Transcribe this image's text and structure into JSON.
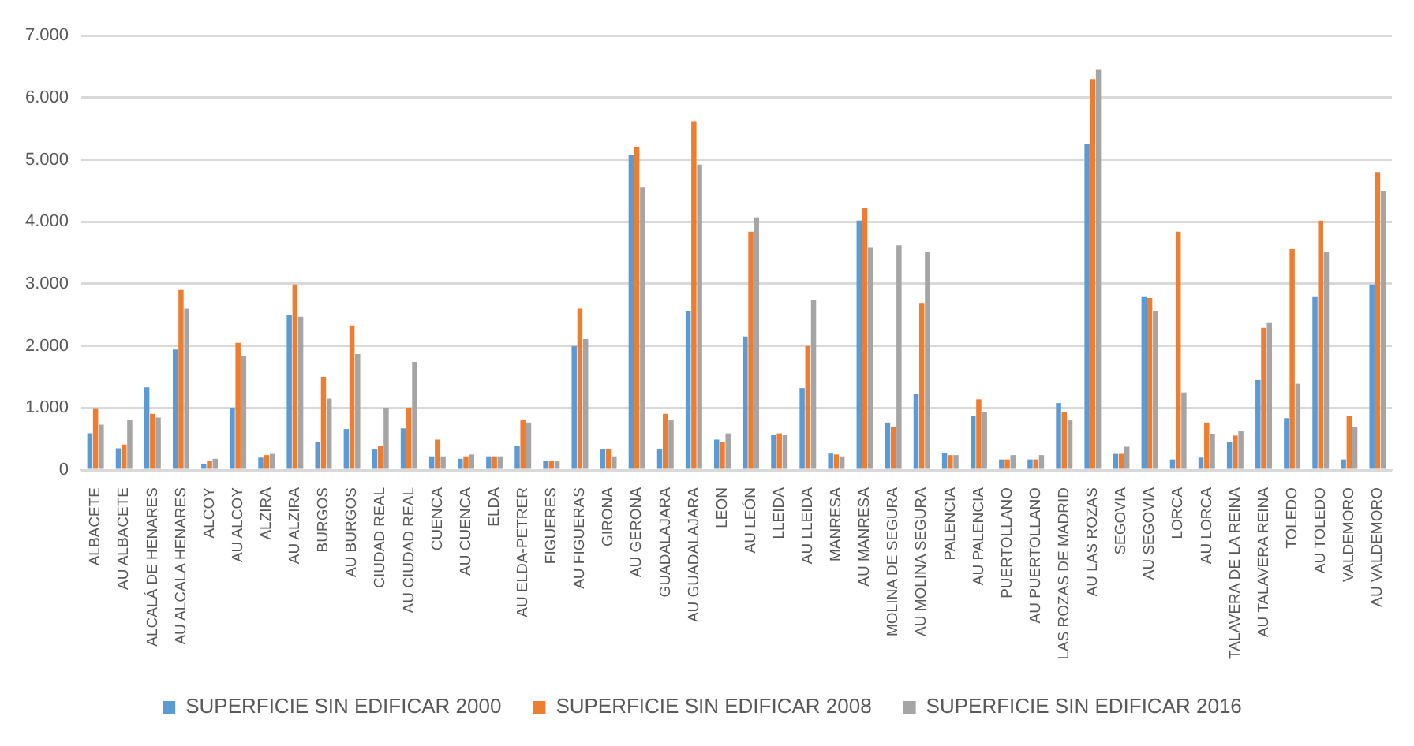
{
  "chart_data": {
    "type": "bar",
    "categories": [
      "ALBACETE",
      "AU ALBACETE",
      "ALCALÁ DE HENARES",
      "AU ALCALA HENARES",
      "ALCOY",
      "AU ALCOY",
      "ALZIRA",
      "AU ALZIRA",
      "BURGOS",
      "AU BURGOS",
      "CIUDAD REAL",
      "AU CIUDAD REAL",
      "CUENCA",
      "AU CUENCA",
      "ELDA",
      "AU ELDA-PETRER",
      "FIGUERES",
      "AU FIGUERAS",
      "GIRONA",
      "AU GERONA",
      "GUADALAJARA",
      "AU GUADALAJARA",
      "LEON",
      "AU LEÓN",
      "LLEIDA",
      "AU LLEIDA",
      "MANRESA",
      "AU MANRESA",
      "MOLINA DE SEGURA",
      "AU MOLINA SEGURA",
      "PALENCIA",
      "AU PALENCIA",
      "PUERTOLLANO",
      "AU PUERTOLLANO",
      "LAS ROZAS DE MADRID",
      "AU LAS ROZAS",
      "SEGOVIA",
      "AU SEGOVIA",
      "LORCA",
      "AU LORCA",
      "TALAVERA DE LA REINA",
      "AU TALAVERA REINA",
      "TOLEDO",
      "AU TOLEDO",
      "VALDEMORO",
      "AU VALDEMORO"
    ],
    "series": [
      {
        "name": "SUPERFICIE SIN EDIFICAR 2000",
        "color": "#5b9bd5",
        "values": [
          590,
          350,
          1330,
          1940,
          100,
          1000,
          200,
          2500,
          450,
          660,
          330,
          670,
          220,
          180,
          220,
          390,
          140,
          2000,
          330,
          5080,
          330,
          2560,
          490,
          2150,
          560,
          1320,
          265,
          4020,
          765,
          1220,
          280,
          875,
          170,
          170,
          1080,
          5250,
          260,
          2800,
          170,
          200,
          445,
          1450,
          835,
          2800,
          170,
          2990
        ]
      },
      {
        "name": "SUPERFICIE SIN EDIFICAR 2008",
        "color": "#ed7d31",
        "values": [
          985,
          410,
          905,
          2900,
          140,
          2050,
          240,
          2990,
          1500,
          2330,
          390,
          1000,
          490,
          220,
          220,
          800,
          140,
          2600,
          330,
          5200,
          905,
          5610,
          450,
          3840,
          590,
          2000,
          250,
          4220,
          700,
          2690,
          240,
          1140,
          170,
          170,
          940,
          6300,
          260,
          2770,
          3840,
          765,
          555,
          2290,
          3560,
          4020,
          875,
          4800
        ]
      },
      {
        "name": "SUPERFICIE SIN EDIFICAR 2016",
        "color": "#a5a5a5",
        "values": [
          730,
          800,
          845,
          2600,
          180,
          1840,
          260,
          2470,
          1150,
          1870,
          1000,
          1740,
          220,
          250,
          220,
          765,
          140,
          2110,
          220,
          4560,
          800,
          4920,
          590,
          4070,
          560,
          2740,
          220,
          3590,
          3620,
          3520,
          240,
          930,
          240,
          240,
          800,
          6450,
          375,
          2560,
          1250,
          585,
          625,
          2380,
          1390,
          3520,
          690,
          4500
        ]
      }
    ],
    "ylim": [
      0,
      7000
    ],
    "yticks": [
      0,
      {
        "value": 1000,
        "label": "1.000"
      },
      {
        "value": 2000,
        "label": "2.000"
      },
      {
        "value": 3000,
        "label": "3.000"
      },
      {
        "value": 4000,
        "label": "4.000"
      },
      {
        "value": 5000,
        "label": "5.000"
      },
      {
        "value": 6000,
        "label": "6.000"
      },
      {
        "value": 7000,
        "label": "7.000"
      }
    ],
    "grid": "y",
    "legend": "bottom"
  }
}
